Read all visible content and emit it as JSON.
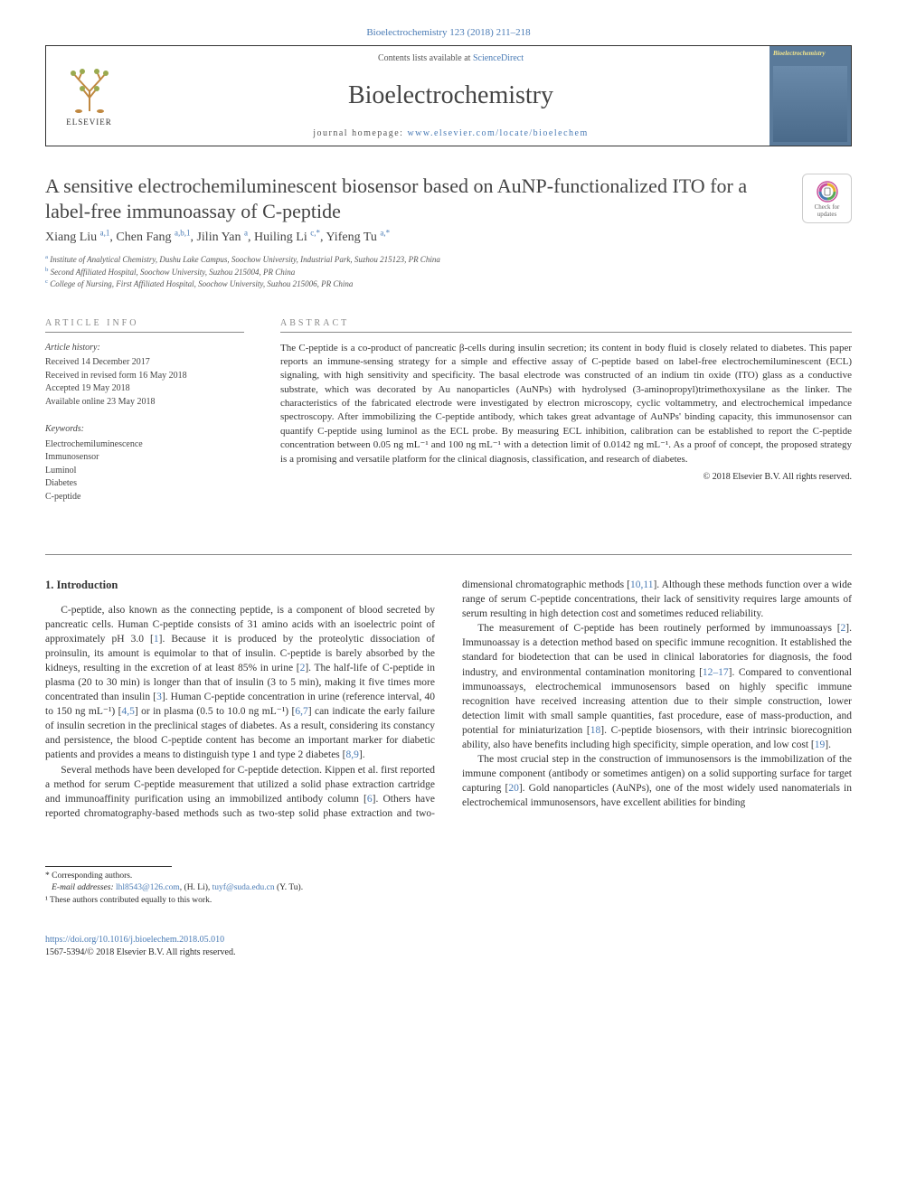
{
  "journal_ref": "Bioelectrochemistry 123 (2018) 211–218",
  "header": {
    "contents_prefix": "Contents lists available at ",
    "contents_link": "ScienceDirect",
    "journal_name": "Bioelectrochemistry",
    "homepage_prefix": "journal homepage: ",
    "homepage_url": "www.elsevier.com/locate/bioelechem",
    "publisher_label": "ELSEVIER",
    "cover_banner": "Bioelectrochemistry"
  },
  "check_updates": {
    "line1": "Check for",
    "line2": "updates"
  },
  "title": "A sensitive electrochemiluminescent biosensor based on AuNP-functionalized ITO for a label-free immunoassay of C-peptide",
  "authors_html": "Xiang Liu <sup>a,1</sup>, Chen Fang <sup>a,b,1</sup>, Jilin Yan <sup>a</sup>, Huiling Li <sup>c,*</sup>, Yifeng Tu <sup>a,*</sup>",
  "affiliations": [
    {
      "marker": "a",
      "text": "Institute of Analytical Chemistry, Dushu Lake Campus, Soochow University, Industrial Park, Suzhou 215123, PR China"
    },
    {
      "marker": "b",
      "text": "Second Affiliated Hospital, Soochow University, Suzhou 215004, PR China"
    },
    {
      "marker": "c",
      "text": "College of Nursing, First Affiliated Hospital, Soochow University, Suzhou 215006, PR China"
    }
  ],
  "info": {
    "label": "article info",
    "history_label": "Article history:",
    "history": [
      "Received 14 December 2017",
      "Received in revised form 16 May 2018",
      "Accepted 19 May 2018",
      "Available online 23 May 2018"
    ],
    "keywords_label": "Keywords:",
    "keywords": [
      "Electrochemiluminescence",
      "Immunosensor",
      "Luminol",
      "Diabetes",
      "C-peptide"
    ]
  },
  "abstract": {
    "label": "abstract",
    "text": "The C-peptide is a co-product of pancreatic β-cells during insulin secretion; its content in body fluid is closely related to diabetes. This paper reports an immune-sensing strategy for a simple and effective assay of C-peptide based on label-free electrochemiluminescent (ECL) signaling, with high sensitivity and specificity. The basal electrode was constructed of an indium tin oxide (ITO) glass as a conductive substrate, which was decorated by Au nanoparticles (AuNPs) with hydrolysed (3-aminopropyl)trimethoxysilane as the linker. The characteristics of the fabricated electrode were investigated by electron microscopy, cyclic voltammetry, and electrochemical impedance spectroscopy. After immobilizing the C-peptide antibody, which takes great advantage of AuNPs' binding capacity, this immunosensor can quantify C-peptide using luminol as the ECL probe. By measuring ECL inhibition, calibration can be established to report the C-peptide concentration between 0.05 ng mL⁻¹ and 100 ng mL⁻¹ with a detection limit of 0.0142 ng mL⁻¹. As a proof of concept, the proposed strategy is a promising and versatile platform for the clinical diagnosis, classification, and research of diabetes.",
    "copyright": "© 2018 Elsevier B.V. All rights reserved."
  },
  "section1": {
    "heading": "1. Introduction",
    "p1_html": "C-peptide, also known as the connecting peptide, is a component of blood secreted by pancreatic cells. Human C-peptide consists of 31 amino acids with an isoelectric point of approximately pH 3.0 [<a class='ref' href='#'>1</a>]. Because it is produced by the proteolytic dissociation of proinsulin, its amount is equimolar to that of insulin. C-peptide is barely absorbed by the kidneys, resulting in the excretion of at least 85% in urine [<a class='ref' href='#'>2</a>]. The half-life of C-peptide in plasma (20 to 30 min) is longer than that of insulin (3 to 5 min), making it five times more concentrated than insulin [<a class='ref' href='#'>3</a>]. Human C-peptide concentration in urine (reference interval, 40 to 150 ng mL⁻¹) [<a class='ref' href='#'>4,5</a>] or in plasma (0.5 to 10.0 ng mL⁻¹) [<a class='ref' href='#'>6,7</a>] can indicate the early failure of insulin secretion in the preclinical stages of diabetes. As a result, considering its constancy and persistence, the blood C-peptide content has become an important marker for diabetic patients and provides a means to distinguish type 1 and type 2 diabetes [<a class='ref' href='#'>8,9</a>].",
    "p2_html": "Several methods have been developed for C-peptide detection. Kippen et al. first reported a method for serum C-peptide measurement that utilized a solid phase extraction cartridge and immunoaffinity purification using an immobilized antibody column [<a class='ref' href='#'>6</a>]. Others have reported chromatography-based methods such as two-step solid phase extraction and two-dimensional chromatographic methods [<a class='ref' href='#'>10,11</a>]. Although these methods function over a wide range of serum C-peptide concentrations, their lack of sensitivity requires large amounts of serum resulting in high detection cost and sometimes reduced reliability.",
    "p3_html": "The measurement of C-peptide has been routinely performed by immunoassays [<a class='ref' href='#'>2</a>]. Immunoassay is a detection method based on specific immune recognition. It established the standard for biodetection that can be used in clinical laboratories for diagnosis, the food industry, and environmental contamination monitoring [<a class='ref' href='#'>12–17</a>]. Compared to conventional immunoassays, electrochemical immunosensors based on highly specific immune recognition have received increasing attention due to their simple construction, lower detection limit with small sample quantities, fast procedure, ease of mass-production, and potential for miniaturization [<a class='ref' href='#'>18</a>]. C-peptide biosensors, with their intrinsic biorecognition ability, also have benefits including high specificity, simple operation, and low cost [<a class='ref' href='#'>19</a>].",
    "p4_html": "The most crucial step in the construction of immunosensors is the immobilization of the immune component (antibody or sometimes antigen) on a solid supporting surface for target capturing [<a class='ref' href='#'>20</a>]. Gold nanoparticles (AuNPs), one of the most widely used nanomaterials in electrochemical immunosensors, have excellent abilities for binding"
  },
  "footnotes": {
    "corresponding": "* Corresponding authors.",
    "email_label": "E-mail addresses:",
    "email1": "lhl8543@126.com",
    "email1_who": "(H. Li),",
    "email2": "tuyf@suda.edu.cn",
    "email2_who": "(Y. Tu).",
    "contrib": "¹ These authors contributed equally to this work."
  },
  "footer": {
    "doi": "https://doi.org/10.1016/j.bioelechem.2018.05.010",
    "issn_line": "1567-5394/© 2018 Elsevier B.V. All rights reserved."
  },
  "colors": {
    "link": "#4a7bb5",
    "text": "#2a2a2a",
    "cover_bg": "#5a7a9a",
    "cover_title": "#f5e68c"
  }
}
